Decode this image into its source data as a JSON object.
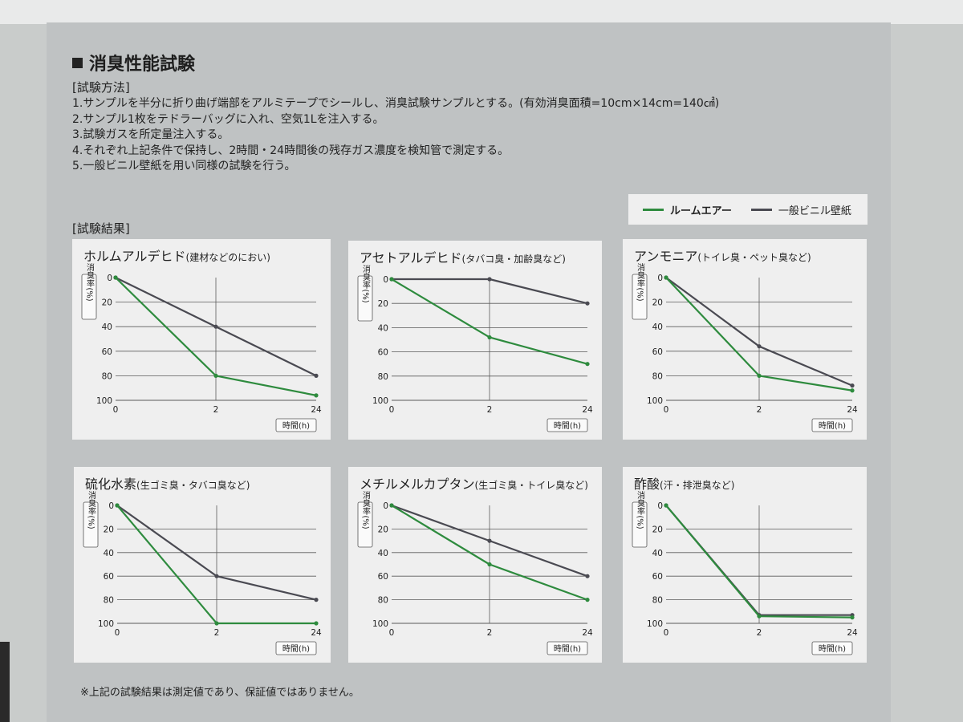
{
  "title": "消臭性能試験",
  "method": {
    "heading": "[試験方法]",
    "steps": [
      "1.サンプルを半分に折り曲げ端部をアルミテープでシールし、消臭試験サンプルとする。(有効消臭面積=10cm×14cm=140㎠)",
      "2.サンプル1枚をテドラーバッグに入れ、空気1Lを注入する。",
      "3.試験ガスを所定量注入する。",
      "4.それぞれ上記条件で保持し、2時間・24時間後の残存ガス濃度を検知管で測定する。",
      "5.一般ビニル壁紙を用い同様の試験を行う。"
    ]
  },
  "legend": {
    "items": [
      {
        "label": "ルームエアー",
        "color": "#2e8b3e"
      },
      {
        "label": "一般ビニル壁紙",
        "color": "#4a4a52"
      }
    ]
  },
  "results_heading": "[試験結果]",
  "footnote": "※上記の試験結果は測定値であり、保証値ではありません。",
  "chart_data": [
    {
      "type": "line",
      "title": "ホルムアルデヒド",
      "subtitle": "(建材などのにおい)",
      "ylabel": "消臭率(%)",
      "xlabel": "時間(h)",
      "x": [
        "0",
        "2",
        "24"
      ],
      "ylim": [
        0,
        100
      ],
      "yticks": [
        "0",
        "20",
        "40",
        "60",
        "80",
        "100"
      ],
      "series": [
        {
          "name": "ルームエアー",
          "color": "#2e8b3e",
          "values": [
            0,
            80,
            96
          ]
        },
        {
          "name": "一般ビニル壁紙",
          "color": "#4a4a52",
          "values": [
            0,
            40,
            80
          ]
        }
      ]
    },
    {
      "type": "line",
      "title": "アセトアルデヒド",
      "subtitle": "(タバコ臭・加齢臭など)",
      "ylabel": "消臭率(%)",
      "xlabel": "時間(h)",
      "x": [
        "0",
        "2",
        "24"
      ],
      "ylim": [
        0,
        100
      ],
      "yticks": [
        "0",
        "20",
        "40",
        "60",
        "80",
        "100"
      ],
      "series": [
        {
          "name": "ルームエアー",
          "color": "#2e8b3e",
          "values": [
            0,
            48,
            70
          ]
        },
        {
          "name": "一般ビニル壁紙",
          "color": "#4a4a52",
          "values": [
            0,
            0,
            20
          ]
        }
      ]
    },
    {
      "type": "line",
      "title": "アンモニア",
      "subtitle": "(トイレ臭・ペット臭など)",
      "ylabel": "消臭率(%)",
      "xlabel": "時間(h)",
      "x": [
        "0",
        "2",
        "24"
      ],
      "ylim": [
        0,
        100
      ],
      "yticks": [
        "0",
        "20",
        "40",
        "60",
        "80",
        "100"
      ],
      "series": [
        {
          "name": "ルームエアー",
          "color": "#2e8b3e",
          "values": [
            0,
            80,
            92
          ]
        },
        {
          "name": "一般ビニル壁紙",
          "color": "#4a4a52",
          "values": [
            0,
            56,
            88
          ]
        }
      ]
    },
    {
      "type": "line",
      "title": "硫化水素",
      "subtitle": "(生ゴミ臭・タバコ臭など)",
      "ylabel": "消臭率(%)",
      "xlabel": "時間(h)",
      "x": [
        "0",
        "2",
        "24"
      ],
      "ylim": [
        0,
        100
      ],
      "yticks": [
        "0",
        "20",
        "40",
        "60",
        "80",
        "100"
      ],
      "series": [
        {
          "name": "ルームエアー",
          "color": "#2e8b3e",
          "values": [
            0,
            100,
            100
          ]
        },
        {
          "name": "一般ビニル壁紙",
          "color": "#4a4a52",
          "values": [
            0,
            60,
            80
          ]
        }
      ]
    },
    {
      "type": "line",
      "title": "メチルメルカプタン",
      "subtitle": "(生ゴミ臭・トイレ臭など)",
      "ylabel": "消臭率(%)",
      "xlabel": "時間(h)",
      "x": [
        "0",
        "2",
        "24"
      ],
      "ylim": [
        0,
        100
      ],
      "yticks": [
        "0",
        "20",
        "40",
        "60",
        "80",
        "100"
      ],
      "series": [
        {
          "name": "ルームエアー",
          "color": "#2e8b3e",
          "values": [
            0,
            50,
            80
          ]
        },
        {
          "name": "一般ビニル壁紙",
          "color": "#4a4a52",
          "values": [
            0,
            30,
            60
          ]
        }
      ]
    },
    {
      "type": "line",
      "title": "酢酸",
      "subtitle": "(汗・排泄臭など)",
      "ylabel": "消臭率(%)",
      "xlabel": "時間(h)",
      "x": [
        "0",
        "2",
        "24"
      ],
      "ylim": [
        0,
        100
      ],
      "yticks": [
        "0",
        "20",
        "40",
        "60",
        "80",
        "100"
      ],
      "series": [
        {
          "name": "ルームエアー",
          "color": "#2e8b3e",
          "values": [
            0,
            94,
            95
          ]
        },
        {
          "name": "一般ビニル壁紙",
          "color": "#4a4a52",
          "values": [
            0,
            93,
            93
          ]
        }
      ]
    }
  ]
}
